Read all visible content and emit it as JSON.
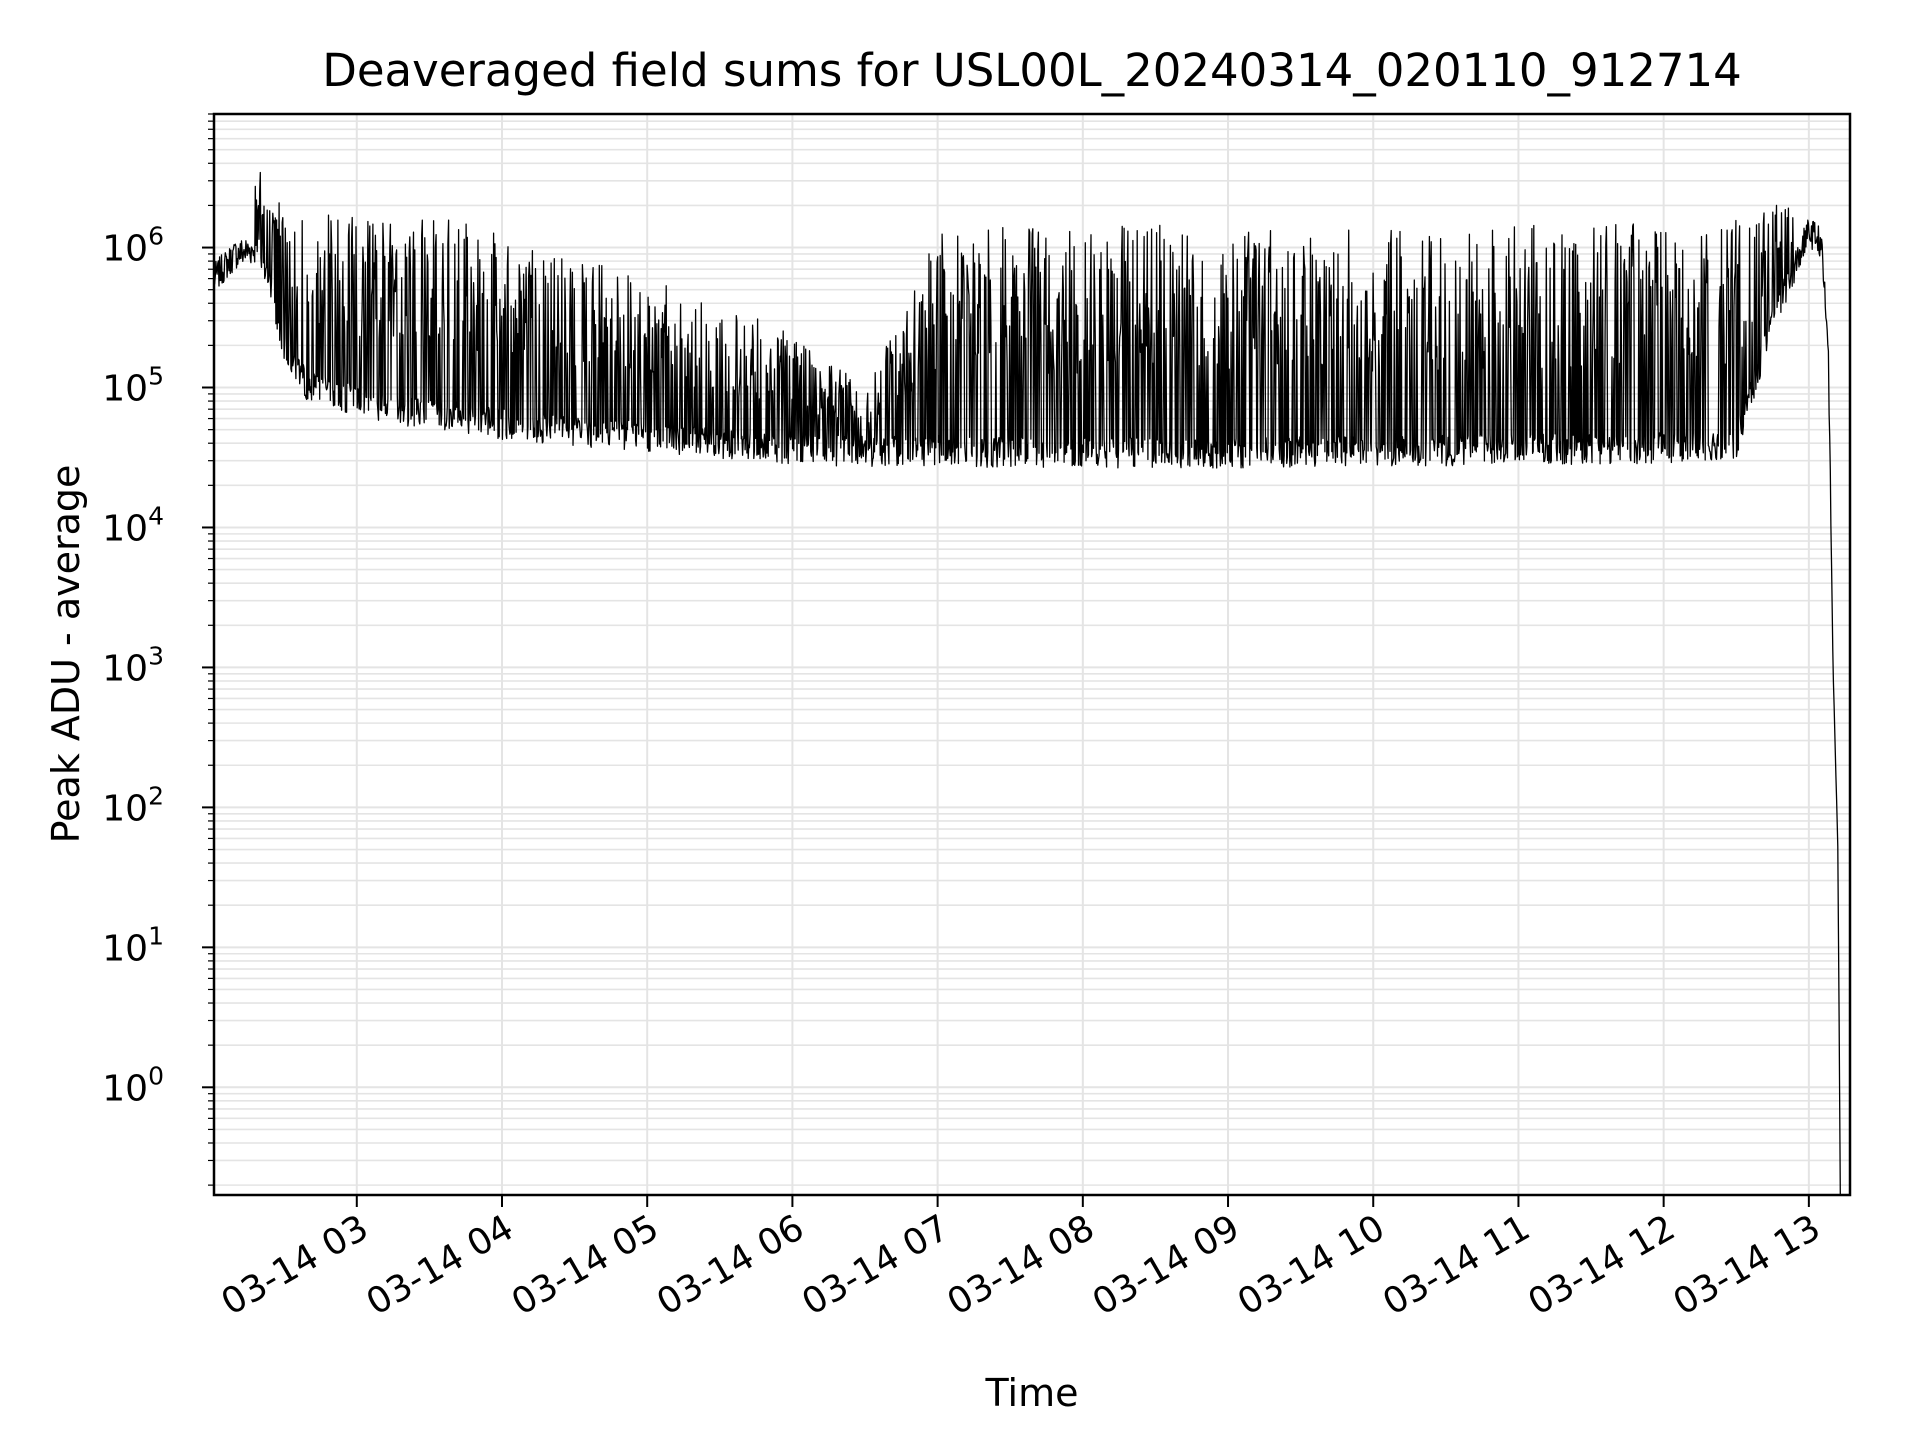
{
  "chart_data": {
    "type": "line",
    "title": "Deaveraged field sums for USL00L_20240314_020110_912714",
    "xlabel": "Time",
    "ylabel": "Peak ADU - average",
    "yscale": "log",
    "grid": true,
    "line_color": "#000000",
    "grid_color": "#e4e4e4",
    "xlim": [
      "2024-03-14 02:01",
      "2024-03-14 13:17"
    ],
    "ylim": [
      0.17,
      9000000
    ],
    "x_ticks": [
      "03-14 03",
      "03-14 04",
      "03-14 05",
      "03-14 06",
      "03-14 07",
      "03-14 08",
      "03-14 09",
      "03-14 10",
      "03-14 11",
      "03-14 12",
      "03-14 13"
    ],
    "y_ticks": [
      {
        "base": "10",
        "exp": "0"
      },
      {
        "base": "10",
        "exp": "1"
      },
      {
        "base": "10",
        "exp": "2"
      },
      {
        "base": "10",
        "exp": "3"
      },
      {
        "base": "10",
        "exp": "4"
      },
      {
        "base": "10",
        "exp": "5"
      },
      {
        "base": "10",
        "exp": "6"
      }
    ],
    "series": [
      {
        "x": [
          "2024-03-14 02:01",
          "2024-03-14 02:10",
          "2024-03-14 02:20",
          "2024-03-14 02:30",
          "2024-03-14 02:40",
          "2024-03-14 02:50",
          "2024-03-14 03:00",
          "2024-03-14 03:15",
          "2024-03-14 03:30",
          "2024-03-14 03:45",
          "2024-03-14 04:00",
          "2024-03-14 04:30",
          "2024-03-14 05:00",
          "2024-03-14 05:30",
          "2024-03-14 06:00",
          "2024-03-14 06:30",
          "2024-03-14 07:00",
          "2024-03-14 08:00",
          "2024-03-14 09:00",
          "2024-03-14 10:00",
          "2024-03-14 11:00",
          "2024-03-14 12:00",
          "2024-03-14 12:30",
          "2024-03-14 12:45",
          "2024-03-14 13:00",
          "2024-03-14 13:05",
          "2024-03-14 13:08",
          "2024-03-14 13:10",
          "2024-03-14 13:12",
          "2024-03-14 13:13"
        ],
        "y": [
          600000,
          900000,
          1000000,
          200000,
          100000,
          90000,
          80000,
          70000,
          65000,
          60000,
          55000,
          48000,
          45000,
          40000,
          36000,
          35000,
          35000,
          34000,
          34000,
          35000,
          36000,
          37000,
          40000,
          300000,
          1300000,
          1100000,
          200000,
          1000,
          50,
          0.17
        ],
        "spike_max": [
          700000,
          1000000,
          4000000,
          1800000,
          1800000,
          1700000,
          1700000,
          1700000,
          1800000,
          1600000,
          1200000,
          900000,
          600000,
          400000,
          250000,
          100000,
          1400000,
          1450000,
          1450000,
          1500000,
          1500000,
          1500000,
          1600000,
          2400000,
          2200000,
          1800000,
          300000,
          1000,
          50,
          0.17
        ]
      }
    ]
  }
}
